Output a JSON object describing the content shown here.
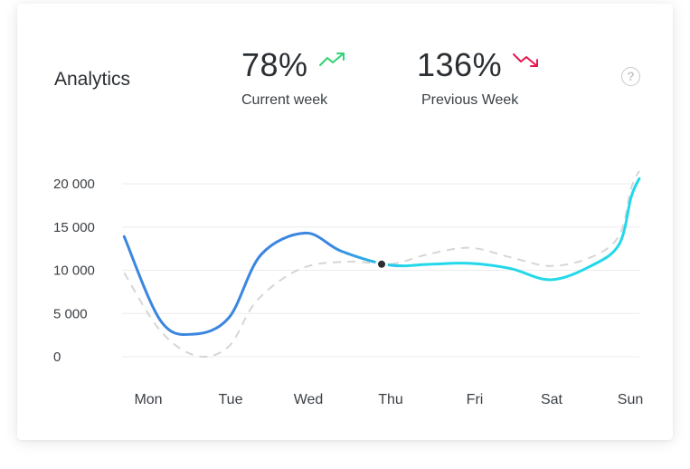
{
  "header": {
    "title": "Analytics",
    "help_icon": "question-circle-icon"
  },
  "stats": [
    {
      "value": "78%",
      "label": "Current week",
      "trend": "up",
      "trend_icon": "trend-up-icon",
      "trend_color": "#2ed573"
    },
    {
      "value": "136%",
      "label": "Previous Week",
      "trend": "down",
      "trend_icon": "trend-down-icon",
      "trend_color": "#e8174f"
    }
  ],
  "chart_data": {
    "type": "line",
    "categories": [
      "Mon",
      "Tue",
      "Wed",
      "Thu",
      "Fri",
      "Sat",
      "Sun"
    ],
    "ylim": [
      0,
      20000
    ],
    "yticks": [
      0,
      5000,
      10000,
      15000,
      20000
    ],
    "ytick_labels": [
      "0",
      "5 000",
      "10 000",
      "15 000",
      "20 000"
    ],
    "grid": true,
    "series": [
      {
        "style": "solid",
        "color_start": "#3b86e0",
        "color_end": "#22d8ea",
        "points": [
          [
            -0.3,
            13900
          ],
          [
            0.15,
            4200
          ],
          [
            0.55,
            2600
          ],
          [
            1.0,
            4500
          ],
          [
            1.4,
            11800
          ],
          [
            1.95,
            14300
          ],
          [
            2.4,
            12200
          ],
          [
            3.0,
            10600
          ],
          [
            3.5,
            10700
          ],
          [
            4.0,
            10800
          ],
          [
            4.5,
            10200
          ],
          [
            5.0,
            8900
          ],
          [
            5.5,
            10500
          ],
          [
            5.85,
            13000
          ],
          [
            6.0,
            18500
          ],
          [
            6.1,
            20600
          ]
        ]
      },
      {
        "style": "dashed",
        "color": "#d6d6d6",
        "points": [
          [
            -0.3,
            9700
          ],
          [
            0.15,
            3000
          ],
          [
            0.6,
            100
          ],
          [
            1.0,
            1200
          ],
          [
            1.35,
            6500
          ],
          [
            1.9,
            10200
          ],
          [
            2.5,
            11000
          ],
          [
            3.0,
            10700
          ],
          [
            3.5,
            11900
          ],
          [
            4.0,
            12600
          ],
          [
            4.5,
            11500
          ],
          [
            5.0,
            10500
          ],
          [
            5.5,
            11500
          ],
          [
            5.85,
            14000
          ],
          [
            6.0,
            19500
          ],
          [
            6.1,
            21500
          ]
        ]
      }
    ],
    "highlight": {
      "x": 3,
      "y": 10600,
      "color": "#2b2f33"
    }
  }
}
